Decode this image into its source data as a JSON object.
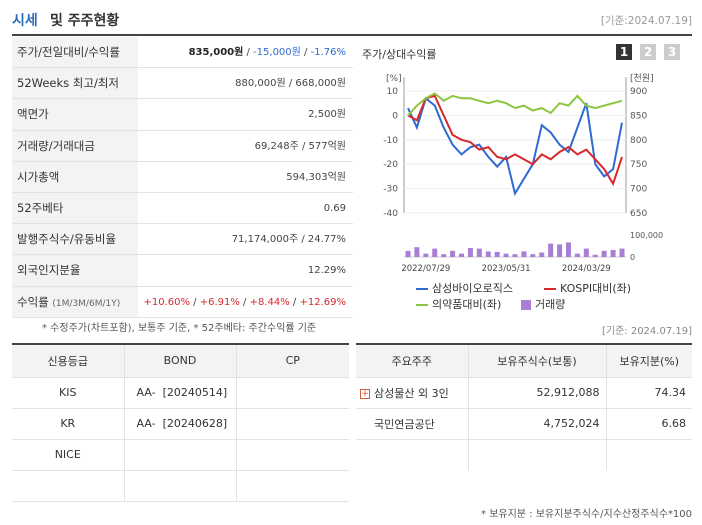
{
  "header": {
    "title_a": "시세",
    "title_b": "및 주주현황",
    "date": "[기준:2024.07.19]"
  },
  "summary": [
    {
      "label": "주가/전일대비/수익률",
      "price": "835,000원",
      "sep1": " / ",
      "change": "-15,000원",
      "sep2": " / ",
      "rate": "-1.76%"
    },
    {
      "label": "52Weeks 최고/최저",
      "value": "880,000원 / 668,000원"
    },
    {
      "label": "액면가",
      "value": "2,500원"
    },
    {
      "label": "거래량/거래대금",
      "value": "69,248주 / 577억원"
    },
    {
      "label": "시가총액",
      "value": "594,303억원"
    },
    {
      "label": "52주베타",
      "value": "0.69"
    },
    {
      "label": "발행주식수/유동비율",
      "value": "71,174,000주 / 24.77%"
    },
    {
      "label": "외국인지분율",
      "value": "12.29%"
    },
    {
      "label": "수익률",
      "label_small": "(1M/3M/6M/1Y)",
      "r1": "+10.60%",
      "r2": "+6.91%",
      "r3": "+8.44%",
      "r4": "+12.69%",
      "sep": " / "
    }
  ],
  "summary_note": "* 수정주가(차트포함), 보통주 기준, * 52주베타: 주간수익률 기준",
  "chart_panel": {
    "title": "주가/상대수익률",
    "tabs": [
      "1",
      "2",
      "3"
    ],
    "date": "[기준: 2024.07.19]"
  },
  "chart_data": {
    "type": "line",
    "left_unit": "[%]",
    "right_unit": "[천원]",
    "ylim_left": [
      -40,
      10
    ],
    "left_ticks": [
      "10",
      "0",
      "-10",
      "-20",
      "-30",
      "-40"
    ],
    "ylim_right": [
      650,
      900
    ],
    "right_ticks": [
      "900",
      "850",
      "800",
      "750",
      "700",
      "650"
    ],
    "volume_ticks": [
      "100,000",
      "0"
    ],
    "x_labels": [
      "2022/07/29",
      "2023/05/31",
      "2024/03/29"
    ],
    "x": [
      0,
      1,
      2,
      3,
      4,
      5,
      6,
      7,
      8,
      9,
      10,
      11,
      12,
      13,
      14,
      15,
      16,
      17,
      18,
      19,
      20,
      21,
      22,
      23,
      24
    ],
    "series": [
      {
        "name": "삼성바이오로직스",
        "color": "#2e6bd0",
        "values": [
          3,
          -5,
          7,
          4,
          -5,
          -12,
          -16,
          -13,
          -12,
          -17,
          -21,
          -17,
          -32,
          -26,
          -20,
          -4,
          -7,
          -12,
          -15,
          -5,
          5,
          -20,
          -25,
          -22,
          -3
        ]
      },
      {
        "name": "KOSPI대비(좌)",
        "color": "#d9272e",
        "values": [
          0,
          -2,
          7,
          8,
          0,
          -8,
          -10,
          -11,
          -14,
          -13,
          -17,
          -18,
          -16,
          -18,
          -20,
          -16,
          -18,
          -15,
          -13,
          -16,
          -14,
          -18,
          -22,
          -28,
          -17
        ]
      },
      {
        "name": "의약품대비(좌)",
        "color": "#8cc63f",
        "values": [
          0,
          4,
          7,
          9,
          6,
          8,
          7,
          7,
          6,
          5,
          6,
          5,
          3,
          4,
          2,
          3,
          1,
          5,
          4,
          8,
          4,
          3,
          4,
          5,
          6
        ]
      }
    ],
    "volume": {
      "name": "거래량",
      "color": "#a97fd6",
      "values": [
        22,
        35,
        12,
        30,
        10,
        22,
        12,
        32,
        30,
        20,
        18,
        12,
        10,
        20,
        10,
        16,
        48,
        45,
        52,
        12,
        30,
        8,
        22,
        25,
        30
      ]
    }
  },
  "credit_table": {
    "headers": [
      "신용등급",
      "BOND",
      "CP"
    ],
    "rows": [
      [
        "KIS",
        "AA-  [20240514]",
        ""
      ],
      [
        "KR",
        "AA-  [20240628]",
        ""
      ],
      [
        "NICE",
        "",
        ""
      ],
      [
        "",
        "",
        ""
      ]
    ]
  },
  "holder_table": {
    "headers": [
      "주요주주",
      "보유주식수(보통)",
      "보유지분(%)"
    ],
    "rows": [
      {
        "name": "삼성물산 외 3인",
        "expand": "+",
        "shares": "52,912,088",
        "pct": "74.34"
      },
      {
        "name": "국민연금공단",
        "expand": "",
        "shares": "4,752,024",
        "pct": "6.68"
      }
    ],
    "note": "* 보유지분 : 보유지분주식수/지수산정주식수*100"
  }
}
